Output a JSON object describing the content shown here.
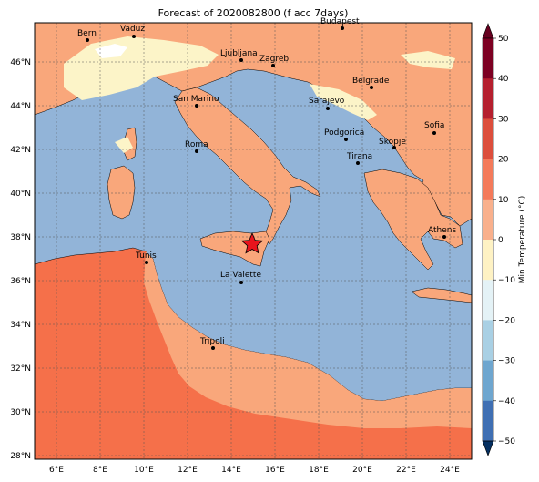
{
  "title": "Forecast of 2020082800 (f acc 7days)",
  "colorbar": {
    "label": "Min Temperature (°C)",
    "ticks": [
      "50",
      "40",
      "30",
      "20",
      "10",
      "0",
      "−10",
      "−20",
      "−30",
      "−40",
      "−50"
    ],
    "colors": [
      "#67001f",
      "#b2182b",
      "#d6604d",
      "#f4a582",
      "#fde9b0",
      "#f7f7f7",
      "#d1e5f0",
      "#92c5de",
      "#4393c3",
      "#2166ac",
      "#053061"
    ]
  },
  "axes": {
    "lon_ticks": [
      "6°E",
      "8°E",
      "10°E",
      "12°E",
      "14°E",
      "16°E",
      "18°E",
      "20°E",
      "22°E",
      "24°E"
    ],
    "lat_ticks": [
      "46°N",
      "44°N",
      "42°N",
      "40°N",
      "38°N",
      "36°N",
      "34°N",
      "32°N",
      "30°N",
      "28°N"
    ]
  },
  "cities": [
    {
      "name": "Bern"
    },
    {
      "name": "Vaduz"
    },
    {
      "name": "Budapest"
    },
    {
      "name": "Ljubljana"
    },
    {
      "name": "Zagreb"
    },
    {
      "name": "Belgrade"
    },
    {
      "name": "San Marino"
    },
    {
      "name": "Sarajevo"
    },
    {
      "name": "Sofia"
    },
    {
      "name": "Podgorica"
    },
    {
      "name": "Skopje"
    },
    {
      "name": "Roma"
    },
    {
      "name": "Tirana"
    },
    {
      "name": "Athens"
    },
    {
      "name": "Tunis"
    },
    {
      "name": "La Valette"
    },
    {
      "name": "Tripoli"
    }
  ],
  "marker": "red-star",
  "fill_colors": {
    "sea": "#92b4d8",
    "land_warm": "#f9a77b",
    "land_hot": "#f5704a",
    "land_cool": "#fcf4c8",
    "land_white": "#ffffff"
  }
}
